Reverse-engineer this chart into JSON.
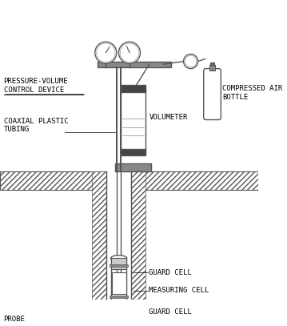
{
  "title": "",
  "bg_color": "#ffffff",
  "line_color": "#555555",
  "dark_color": "#333333",
  "light_gray": "#aaaaaa",
  "hatch_color": "#666666",
  "labels": {
    "pressure_volume": "PRESSURE-VOLUME\nCONTROL DEVICE",
    "coaxial": "COAXIAL PLASTIC\nTUBING",
    "volumeter": "VOLUMETER",
    "compressed_air": "COMPRESSED AIR\nBOTTLE",
    "guard_cell_top": "GUARD CELL",
    "measuring_cell": "MEASURING CELL",
    "guard_cell_bot": "GUARD CELL",
    "probe": "PROBE"
  },
  "font_size": 6.5,
  "figsize": [
    3.59,
    4.07
  ],
  "dpi": 100
}
